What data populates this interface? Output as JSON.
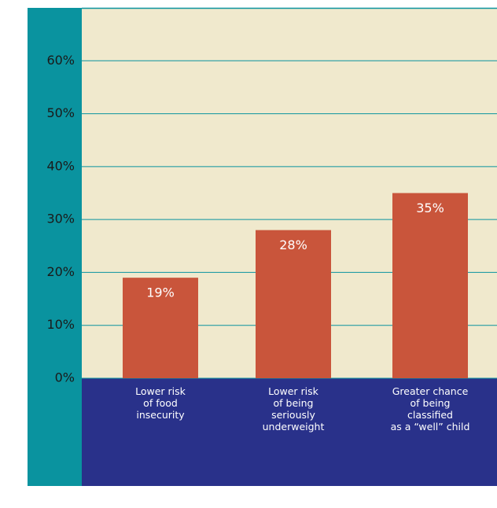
{
  "chart_data": {
    "type": "bar",
    "categories": [
      [
        "Lower risk",
        "of food",
        "insecurity"
      ],
      [
        "Lower risk",
        "of being",
        "seriously",
        "underweight"
      ],
      [
        "Greater chance",
        "of being",
        "classified",
        "as a “well” child"
      ]
    ],
    "values": [
      19,
      28,
      35
    ],
    "value_labels": [
      "19%",
      "28%",
      "35%"
    ],
    "color": "#c9553b",
    "ylim": [
      0,
      70
    ],
    "yticks": [
      {
        "value": 0,
        "label": "0%"
      },
      {
        "value": 10,
        "label": "10%"
      },
      {
        "value": 20,
        "label": "20%"
      },
      {
        "value": 30,
        "label": "30%"
      },
      {
        "value": 40,
        "label": "40%"
      },
      {
        "value": 50,
        "label": "50%"
      },
      {
        "value": 60,
        "label": "60%"
      }
    ],
    "grid": true
  }
}
